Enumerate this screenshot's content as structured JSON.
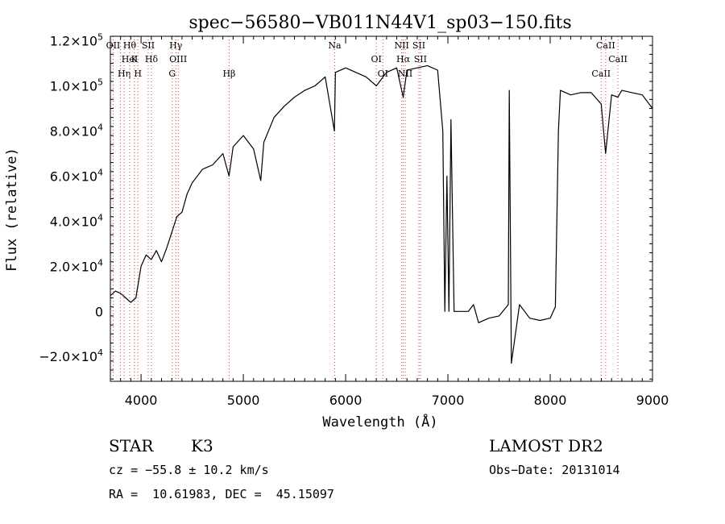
{
  "chart_data": {
    "type": "line",
    "title": "spec−56580−VB011N44V1_sp03−150.fits",
    "xlabel": "Wavelength (Å)",
    "ylabel": "Flux (relative)",
    "xlim": [
      3700,
      9000
    ],
    "ylim": [
      -31000,
      122000
    ],
    "grid": false,
    "x_ticks": [
      4000,
      5000,
      6000,
      7000,
      8000,
      9000
    ],
    "x_tick_labels": [
      "4000",
      "5000",
      "6000",
      "7000",
      "8000",
      "9000"
    ],
    "y_ticks": [
      -20000,
      0,
      20000,
      40000,
      60000,
      80000,
      100000,
      120000
    ],
    "y_tick_labels": [
      {
        "mant": "−2.0×10",
        "exp": "4"
      },
      {
        "mant": "0",
        "exp": ""
      },
      {
        "mant": "2.0×10",
        "exp": "4"
      },
      {
        "mant": "4.0×10",
        "exp": "4"
      },
      {
        "mant": "6.0×10",
        "exp": "4"
      },
      {
        "mant": "8.0×10",
        "exp": "4"
      },
      {
        "mant": "1.0×10",
        "exp": "5"
      },
      {
        "mant": "1.2×10",
        "exp": "5"
      }
    ],
    "series": [
      {
        "color": "#000000",
        "x": [
          3700,
          3750,
          3800,
          3850,
          3900,
          3950,
          4000,
          4050,
          4100,
          4150,
          4200,
          4250,
          4300,
          4350,
          4400,
          4450,
          4500,
          4600,
          4700,
          4800,
          4860,
          4900,
          5000,
          5100,
          5170,
          5200,
          5300,
          5400,
          5500,
          5600,
          5700,
          5800,
          5890,
          5900,
          6000,
          6100,
          6200,
          6300,
          6400,
          6500,
          6563,
          6600,
          6700,
          6800,
          6900,
          6950,
          6970,
          6990,
          7010,
          7030,
          7060,
          7100,
          7150,
          7200,
          7250,
          7300,
          7400,
          7500,
          7590,
          7600,
          7620,
          7700,
          7800,
          7900,
          8000,
          8050,
          8080,
          8100,
          8200,
          8300,
          8400,
          8498,
          8542,
          8600,
          8662,
          8700,
          8800,
          8900,
          9000
        ],
        "y": [
          7000,
          9000,
          8000,
          6000,
          4000,
          6000,
          20000,
          25000,
          23000,
          27000,
          22000,
          28000,
          35000,
          42000,
          44000,
          52000,
          57000,
          63000,
          65000,
          70000,
          60000,
          73000,
          78000,
          72000,
          58000,
          75000,
          86000,
          91000,
          95000,
          98000,
          100000,
          104000,
          80000,
          106000,
          108000,
          106000,
          104000,
          100000,
          106000,
          108000,
          95000,
          107000,
          108000,
          109000,
          107000,
          80000,
          0,
          60000,
          0,
          85000,
          0,
          0,
          0,
          0,
          3000,
          -5000,
          -3000,
          -2000,
          3000,
          98000,
          -23000,
          3000,
          -3000,
          -4000,
          -3000,
          2000,
          80000,
          98000,
          96000,
          97000,
          97000,
          92000,
          70000,
          96000,
          95000,
          98000,
          97000,
          96000,
          90000
        ]
      }
    ],
    "line_marks": [
      {
        "x": 3727,
        "labels": [
          "OII"
        ]
      },
      {
        "x": 3798,
        "labels": []
      },
      {
        "x": 3835,
        "labels": [
          "Hη"
        ]
      },
      {
        "x": 3889,
        "labels": [
          "Hθ",
          "HeI"
        ]
      },
      {
        "x": 3934,
        "labels": [
          "K"
        ]
      },
      {
        "x": 3969,
        "labels": [
          "H"
        ]
      },
      {
        "x": 4070,
        "labels": [
          "SII"
        ]
      },
      {
        "x": 4102,
        "labels": [
          "Hδ"
        ]
      },
      {
        "x": 4305,
        "labels": [
          "G"
        ]
      },
      {
        "x": 4340,
        "labels": [
          "Hγ"
        ]
      },
      {
        "x": 4363,
        "labels": [
          "OIII"
        ]
      },
      {
        "x": 4861,
        "labels": [
          "Hβ"
        ]
      },
      {
        "x": 5893,
        "labels": [
          "Na"
        ]
      },
      {
        "x": 6300,
        "labels": [
          "OI"
        ]
      },
      {
        "x": 6364,
        "labels": [
          "OI"
        ]
      },
      {
        "x": 6548,
        "labels": [
          "NII"
        ]
      },
      {
        "x": 6563,
        "labels": [
          "Hα"
        ]
      },
      {
        "x": 6583,
        "labels": [
          "NII"
        ]
      },
      {
        "x": 6716,
        "labels": [
          "SII"
        ]
      },
      {
        "x": 6731,
        "labels": [
          "SII"
        ]
      },
      {
        "x": 8498,
        "labels": [
          "CaII"
        ]
      },
      {
        "x": 8542,
        "labels": [
          "CaII"
        ]
      },
      {
        "x": 8662,
        "labels": [
          "CaII"
        ]
      }
    ]
  },
  "info": {
    "object_class": "STAR",
    "subclass": "K3",
    "survey": "LAMOST DR2",
    "redshift": "cz = −55.8 ± 10.2 km/s",
    "obs_date": "Obs−Date: 20131014",
    "coordinates": "RA =  10.61983, DEC =  45.15097"
  }
}
